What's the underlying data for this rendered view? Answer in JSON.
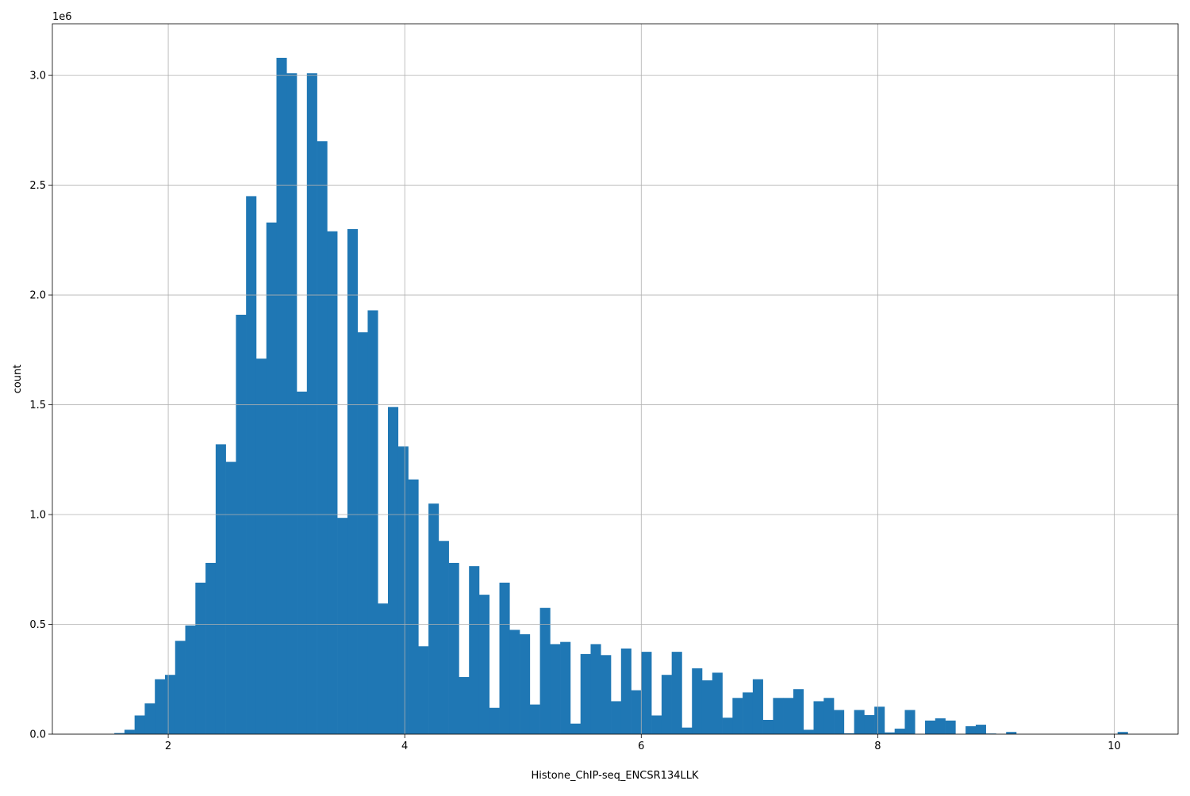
{
  "chart_data": {
    "type": "bar",
    "subtype": "histogram",
    "title": "",
    "xlabel": "Histone_ChIP-seq_ENCSR134LLK",
    "ylabel": "count",
    "y_offset_label": "1e6",
    "y_multiplier": 1000000,
    "xlim": [
      1.02,
      10.54
    ],
    "ylim": [
      0,
      3.235
    ],
    "x_ticks": [
      2,
      4,
      6,
      8,
      10
    ],
    "x_tick_labels": [
      "2",
      "4",
      "6",
      "8",
      "10"
    ],
    "y_ticks": [
      0,
      0.5,
      1.0,
      1.5,
      2.0,
      2.5,
      3.0
    ],
    "y_tick_labels": [
      "0.0",
      "0.5",
      "1.0",
      "1.5",
      "2.0",
      "2.5",
      "3.0"
    ],
    "grid": true,
    "bar_color": "#1f77b4",
    "bin_start": 1.544,
    "bin_width": 0.0857,
    "values": [
      0.005,
      0.02,
      0.085,
      0.14,
      0.25,
      0.27,
      0.425,
      0.495,
      0.69,
      0.78,
      1.32,
      1.24,
      1.91,
      2.45,
      1.71,
      2.33,
      3.08,
      3.01,
      1.56,
      3.01,
      2.7,
      2.29,
      0.985,
      2.3,
      1.83,
      1.93,
      0.595,
      1.49,
      1.31,
      1.16,
      0.4,
      1.05,
      0.88,
      0.78,
      0.26,
      0.765,
      0.635,
      0.12,
      0.69,
      0.475,
      0.455,
      0.135,
      0.575,
      0.41,
      0.42,
      0.048,
      0.365,
      0.41,
      0.36,
      0.15,
      0.39,
      0.2,
      0.375,
      0.085,
      0.27,
      0.375,
      0.03,
      0.3,
      0.245,
      0.28,
      0.075,
      0.165,
      0.19,
      0.25,
      0.065,
      0.165,
      0.165,
      0.205,
      0.02,
      0.15,
      0.165,
      0.11,
      0.004,
      0.11,
      0.087,
      0.125,
      0.008,
      0.025,
      0.11,
      0,
      0.062,
      0.072,
      0.062,
      0,
      0.036,
      0.043,
      0.003,
      0,
      0.01,
      0,
      0,
      0,
      0,
      0,
      0,
      0,
      0,
      0,
      0,
      0.01
    ]
  }
}
